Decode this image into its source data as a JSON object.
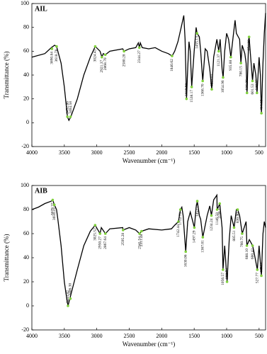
{
  "chart_data": [
    {
      "type": "line",
      "title": "AIL",
      "x_label": "Wavenumber (cm⁻¹)",
      "y_label": "Transmittance (%)",
      "xlim": [
        4000,
        400
      ],
      "ylim": [
        -20,
        100
      ],
      "xticks": [
        4000,
        3500,
        3000,
        2500,
        2000,
        1500,
        1000,
        500
      ],
      "yticks": [
        -20,
        0,
        20,
        40,
        60,
        80,
        100
      ],
      "color": "#000000",
      "marker_color": "#7fd13b",
      "x": [
        4000,
        3800,
        3700,
        3650,
        3620,
        3600,
        3550,
        3500,
        3452,
        3430,
        3400,
        3300,
        3200,
        3100,
        3024,
        2950,
        2921,
        2900,
        2868,
        2800,
        2600,
        2580,
        2500,
        2400,
        2360,
        2344,
        2330,
        2300,
        2200,
        2100,
        2000,
        1900,
        1840,
        1800,
        1750,
        1700,
        1680,
        1660,
        1640,
        1618,
        1600,
        1580,
        1560,
        1538,
        1500,
        1470,
        1455,
        1420,
        1400,
        1368,
        1330,
        1300,
        1260,
        1229,
        1200,
        1150,
        1121,
        1100,
        1070,
        1054,
        1030,
        1000,
        970,
        935,
        900,
        870,
        850,
        800,
        780,
        760,
        720,
        700,
        686,
        660,
        654,
        630,
        601,
        580,
        550,
        532,
        500,
        480,
        464,
        440,
        420,
        400
      ],
      "values": [
        55,
        58,
        63,
        65,
        64,
        60,
        50,
        30,
        5,
        2,
        5,
        20,
        40,
        55,
        64,
        60,
        55,
        58,
        57,
        60,
        62,
        60,
        62,
        63,
        67,
        63,
        67,
        63,
        62,
        63,
        60,
        58,
        56,
        60,
        68,
        80,
        85,
        90,
        70,
        20,
        45,
        68,
        60,
        30,
        60,
        80,
        75,
        72,
        60,
        35,
        62,
        60,
        45,
        28,
        55,
        70,
        60,
        70,
        45,
        38,
        60,
        75,
        70,
        55,
        72,
        86,
        75,
        70,
        50,
        65,
        58,
        50,
        25,
        70,
        72,
        55,
        35,
        50,
        40,
        25,
        55,
        40,
        8,
        50,
        75,
        92
      ],
      "annotations": [
        {
          "x": 3690.84,
          "y": 62,
          "label": "3690.84"
        },
        {
          "x": 3618.78,
          "y": 64,
          "label": "3618.78"
        },
        {
          "x": 3452.86,
          "y": 5,
          "label": "3452.86"
        },
        {
          "x": 3404.58,
          "y": 5,
          "label": "3404.58"
        },
        {
          "x": 3024.43,
          "y": 64,
          "label": "3024.43"
        },
        {
          "x": 2921.37,
          "y": 55,
          "label": "2921.37"
        },
        {
          "x": 2868.7,
          "y": 57,
          "label": "2868.70"
        },
        {
          "x": 2580.28,
          "y": 60,
          "label": "2580.28"
        },
        {
          "x": 2344.27,
          "y": 63,
          "label": "2344.27"
        },
        {
          "x": 1840.62,
          "y": 56,
          "label": "1840.62"
        },
        {
          "x": 1618.03,
          "y": 20,
          "label": "1618.03"
        },
        {
          "x": 1538.17,
          "y": 30,
          "label": "1538.17"
        },
        {
          "x": 1455.13,
          "y": 75,
          "label": "1455.13"
        },
        {
          "x": 1368.7,
          "y": 35,
          "label": "1368.70"
        },
        {
          "x": 1229.01,
          "y": 28,
          "label": "1229.01"
        },
        {
          "x": 1121.37,
          "y": 60,
          "label": "1121.37"
        },
        {
          "x": 1054.96,
          "y": 38,
          "label": "1054.96"
        },
        {
          "x": 935.88,
          "y": 55,
          "label": "935.88"
        },
        {
          "x": 780.15,
          "y": 50,
          "label": "780.15"
        },
        {
          "x": 686.26,
          "y": 25,
          "label": "686.26"
        },
        {
          "x": 654.2,
          "y": 72,
          "label": "654.20"
        },
        {
          "x": 601.53,
          "y": 35,
          "label": "601.53"
        },
        {
          "x": 532.82,
          "y": 25,
          "label": "532.82"
        },
        {
          "x": 464.12,
          "y": 8,
          "label": "464.12"
        }
      ]
    },
    {
      "type": "line",
      "title": "AIB",
      "x_label": "Wavenumber (cm⁻¹)",
      "y_label": "Transmittance (%)",
      "xlim": [
        4000,
        400
      ],
      "ylim": [
        -20,
        100
      ],
      "xticks": [
        4000,
        3500,
        3000,
        2500,
        2000,
        1500,
        1000,
        500
      ],
      "yticks": [
        -20,
        0,
        20,
        40,
        60,
        80,
        100
      ],
      "color": "#000000",
      "marker_color": "#7fd13b",
      "x": [
        4000,
        3900,
        3800,
        3700,
        3679,
        3654,
        3620,
        3600,
        3550,
        3500,
        3460,
        3443,
        3420,
        3300,
        3200,
        3100,
        3025,
        2950,
        2930,
        2867,
        2800,
        2600,
        2595,
        2500,
        2400,
        2341,
        2311,
        2200,
        2000,
        1850,
        1800,
        1742,
        1712,
        1690,
        1670,
        1630,
        1600,
        1560,
        1497,
        1470,
        1452,
        1420,
        1400,
        1367,
        1300,
        1260,
        1234,
        1200,
        1150,
        1146,
        1106,
        1070,
        1056,
        1030,
        993,
        960,
        930,
        885,
        850,
        830,
        800,
        760,
        700,
        688,
        650,
        600,
        580,
        527,
        500,
        465,
        440,
        420,
        400
      ],
      "values": [
        80,
        82,
        85,
        87,
        88,
        84,
        80,
        72,
        50,
        20,
        5,
        0,
        5,
        30,
        50,
        62,
        67,
        60,
        65,
        60,
        64,
        65,
        63,
        65,
        63,
        60,
        62,
        64,
        63,
        64,
        67,
        70,
        80,
        82,
        75,
        45,
        70,
        78,
        65,
        82,
        87,
        75,
        72,
        57,
        75,
        83,
        75,
        88,
        92,
        80,
        85,
        65,
        30,
        50,
        20,
        55,
        75,
        65,
        80,
        80,
        75,
        60,
        70,
        50,
        55,
        50,
        45,
        30,
        50,
        25,
        60,
        70,
        65
      ],
      "annotations": [
        {
          "x": 3679.37,
          "y": 88,
          "label": "3679.37"
        },
        {
          "x": 3654.23,
          "y": 84,
          "label": "3654.23"
        },
        {
          "x": 3443.82,
          "y": 0,
          "label": "3443.82"
        },
        {
          "x": 3406.3,
          "y": 6,
          "label": "3406.30"
        },
        {
          "x": 3025.52,
          "y": 67,
          "label": "3025.52"
        },
        {
          "x": 2950.27,
          "y": 60,
          "label": "2950.27"
        },
        {
          "x": 2867.64,
          "y": 60,
          "label": "2867.64"
        },
        {
          "x": 2595.28,
          "y": 63,
          "label": "2595.28"
        },
        {
          "x": 2341.54,
          "y": 60,
          "label": "2341.54"
        },
        {
          "x": 2311.48,
          "y": 62,
          "label": "2311.48"
        },
        {
          "x": 1742.44,
          "y": 70,
          "label": "1742.44"
        },
        {
          "x": 1712.73,
          "y": 80,
          "label": "1712.73"
        },
        {
          "x": 1630.06,
          "y": 45,
          "label": "1630.06"
        },
        {
          "x": 1497.29,
          "y": 65,
          "label": "1497.29"
        },
        {
          "x": 1452.19,
          "y": 87,
          "label": "1452.19"
        },
        {
          "x": 1367.01,
          "y": 57,
          "label": "1367.01"
        },
        {
          "x": 1234.24,
          "y": 75,
          "label": "1234.24"
        },
        {
          "x": 1146.58,
          "y": 80,
          "label": "1146.58"
        },
        {
          "x": 1106.47,
          "y": 85,
          "label": "1106.47"
        },
        {
          "x": 1056.57,
          "y": 30,
          "label": "1056.57"
        },
        {
          "x": 993.74,
          "y": 20,
          "label": "993.74"
        },
        {
          "x": 885.51,
          "y": 65,
          "label": "885.51"
        },
        {
          "x": 830.9,
          "y": 80,
          "label": "830.90"
        },
        {
          "x": 760.75,
          "y": 60,
          "label": "760.75"
        },
        {
          "x": 688.1,
          "y": 50,
          "label": "688.10"
        },
        {
          "x": 600.42,
          "y": 50,
          "label": "600.42"
        },
        {
          "x": 527.77,
          "y": 30,
          "label": "527.77"
        },
        {
          "x": 465.14,
          "y": 25,
          "label": "465.14"
        }
      ]
    }
  ]
}
